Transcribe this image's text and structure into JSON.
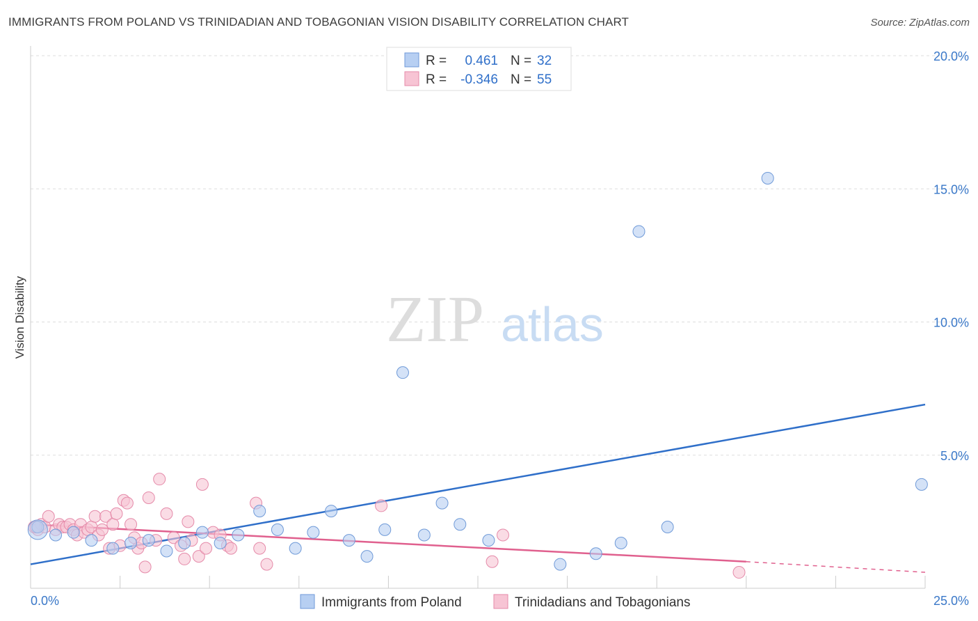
{
  "title": "IMMIGRANTS FROM POLAND VS TRINIDADIAN AND TOBAGONIAN VISION DISABILITY CORRELATION CHART",
  "source": "Source: ZipAtlas.com",
  "watermark": {
    "zip": "ZIP",
    "atlas": "atlas"
  },
  "colors": {
    "blue_fill": "#b7cff2",
    "blue_stroke": "#6f9ad8",
    "blue_line": "#2f6fc9",
    "pink_fill": "#f7c4d4",
    "pink_stroke": "#e58aa9",
    "pink_line": "#e0608e",
    "tick_text": "#3a78c8",
    "grid": "#dddddd"
  },
  "legend": {
    "rows": [
      {
        "r_label": "R =",
        "r_value": "0.461",
        "n_label": "N =",
        "n_value": "32"
      },
      {
        "r_label": "R =",
        "r_value": "-0.346",
        "n_label": "N =",
        "n_value": "55"
      }
    ]
  },
  "chart_data": {
    "type": "scatter",
    "xlabel": "",
    "ylabel": "Vision Disability",
    "xlim": [
      0,
      25
    ],
    "ylim": [
      0,
      20
    ],
    "x_tick_labels": [
      "0.0%",
      "25.0%"
    ],
    "y_tick_labels": [
      "5.0%",
      "10.0%",
      "15.0%",
      "20.0%"
    ],
    "y_ticks": [
      5,
      10,
      15,
      20
    ],
    "grid": true,
    "series": [
      {
        "name": "Immigrants from Poland",
        "color": "#b7cff2",
        "points": [
          [
            0.2,
            2.3
          ],
          [
            0.7,
            2.0
          ],
          [
            1.2,
            2.1
          ],
          [
            1.7,
            1.8
          ],
          [
            2.3,
            1.5
          ],
          [
            2.8,
            1.7
          ],
          [
            3.3,
            1.8
          ],
          [
            3.8,
            1.4
          ],
          [
            4.3,
            1.7
          ],
          [
            4.8,
            2.1
          ],
          [
            5.3,
            1.7
          ],
          [
            5.8,
            2.0
          ],
          [
            6.4,
            2.9
          ],
          [
            6.9,
            2.2
          ],
          [
            7.4,
            1.5
          ],
          [
            7.9,
            2.1
          ],
          [
            8.4,
            2.9
          ],
          [
            8.9,
            1.8
          ],
          [
            9.4,
            1.2
          ],
          [
            9.9,
            2.2
          ],
          [
            10.4,
            8.1
          ],
          [
            11.0,
            2.0
          ],
          [
            11.5,
            3.2
          ],
          [
            12.0,
            2.4
          ],
          [
            12.8,
            1.8
          ],
          [
            14.8,
            0.9
          ],
          [
            15.8,
            1.3
          ],
          [
            16.5,
            1.7
          ],
          [
            17.0,
            13.4
          ],
          [
            17.8,
            2.3
          ],
          [
            20.6,
            15.4
          ],
          [
            24.9,
            3.9
          ]
        ],
        "trend": [
          [
            0,
            0.9
          ],
          [
            25,
            6.9
          ]
        ]
      },
      {
        "name": "Trinidadians and Tobagonians",
        "color": "#f7c4d4",
        "points": [
          [
            0.1,
            2.3
          ],
          [
            0.2,
            2.2
          ],
          [
            0.3,
            2.4
          ],
          [
            0.4,
            2.3
          ],
          [
            0.5,
            2.7
          ],
          [
            0.7,
            2.2
          ],
          [
            0.8,
            2.4
          ],
          [
            0.9,
            2.3
          ],
          [
            1.0,
            2.3
          ],
          [
            1.1,
            2.4
          ],
          [
            1.2,
            2.2
          ],
          [
            1.3,
            2.0
          ],
          [
            1.4,
            2.4
          ],
          [
            1.5,
            2.1
          ],
          [
            1.6,
            2.2
          ],
          [
            1.7,
            2.3
          ],
          [
            1.8,
            2.7
          ],
          [
            1.9,
            2.0
          ],
          [
            2.0,
            2.2
          ],
          [
            2.1,
            2.7
          ],
          [
            2.2,
            1.5
          ],
          [
            2.3,
            2.4
          ],
          [
            2.4,
            2.8
          ],
          [
            2.5,
            1.6
          ],
          [
            2.6,
            3.3
          ],
          [
            2.7,
            3.2
          ],
          [
            2.8,
            2.4
          ],
          [
            2.9,
            1.9
          ],
          [
            3.0,
            1.5
          ],
          [
            3.1,
            1.7
          ],
          [
            3.2,
            0.8
          ],
          [
            3.3,
            3.4
          ],
          [
            3.5,
            1.8
          ],
          [
            3.6,
            4.1
          ],
          [
            3.8,
            2.8
          ],
          [
            4.0,
            1.9
          ],
          [
            4.2,
            1.6
          ],
          [
            4.3,
            1.1
          ],
          [
            4.4,
            2.5
          ],
          [
            4.5,
            1.8
          ],
          [
            4.7,
            1.2
          ],
          [
            4.8,
            3.9
          ],
          [
            4.9,
            1.5
          ],
          [
            5.1,
            2.1
          ],
          [
            5.3,
            2.0
          ],
          [
            5.5,
            1.6
          ],
          [
            5.6,
            1.5
          ],
          [
            6.3,
            3.2
          ],
          [
            6.4,
            1.5
          ],
          [
            6.6,
            0.9
          ],
          [
            9.8,
            3.1
          ],
          [
            12.9,
            1.0
          ],
          [
            13.2,
            2.0
          ],
          [
            19.8,
            0.6
          ],
          [
            0.15,
            2.3
          ]
        ],
        "trend": [
          [
            0,
            2.4
          ],
          [
            20,
            1.0
          ]
        ],
        "trend_extension": [
          [
            20,
            1.0
          ],
          [
            25,
            0.6
          ]
        ]
      }
    ]
  }
}
